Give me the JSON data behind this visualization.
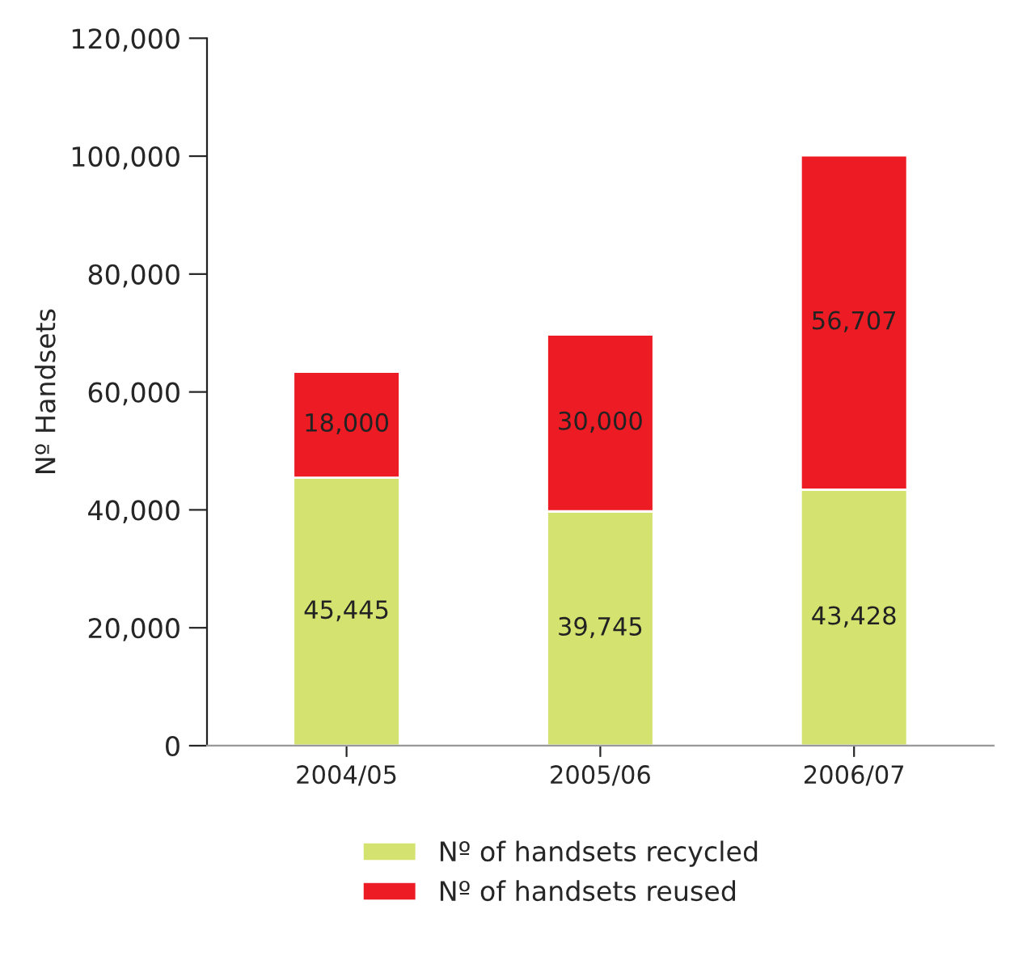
{
  "chart_data": {
    "type": "bar",
    "stacked": true,
    "ylabel": "Nº Handsets",
    "categories": [
      "2004/05",
      "2005/06",
      "2006/07"
    ],
    "series": [
      {
        "name": "Nº of handsets recycled",
        "color": "#d4e26f",
        "values": [
          45445,
          39745,
          43428
        ],
        "value_labels": [
          "45,445",
          "39,745",
          "43,428"
        ]
      },
      {
        "name": "Nº of handsets reused",
        "color": "#ed1c24",
        "values": [
          18000,
          30000,
          56707
        ],
        "value_labels": [
          "18,000",
          "30,000",
          "56,707"
        ]
      }
    ],
    "ylim": [
      0,
      120000
    ],
    "yticks": [
      {
        "value": 0,
        "label": "0"
      },
      {
        "value": 20000,
        "label": "20,000"
      },
      {
        "value": 40000,
        "label": "40,000"
      },
      {
        "value": 60000,
        "label": "60,000"
      },
      {
        "value": 80000,
        "label": "80,000"
      },
      {
        "value": 100000,
        "label": "100,000"
      },
      {
        "value": 120000,
        "label": "120,000"
      }
    ],
    "grid": false,
    "legend": "bottom"
  }
}
